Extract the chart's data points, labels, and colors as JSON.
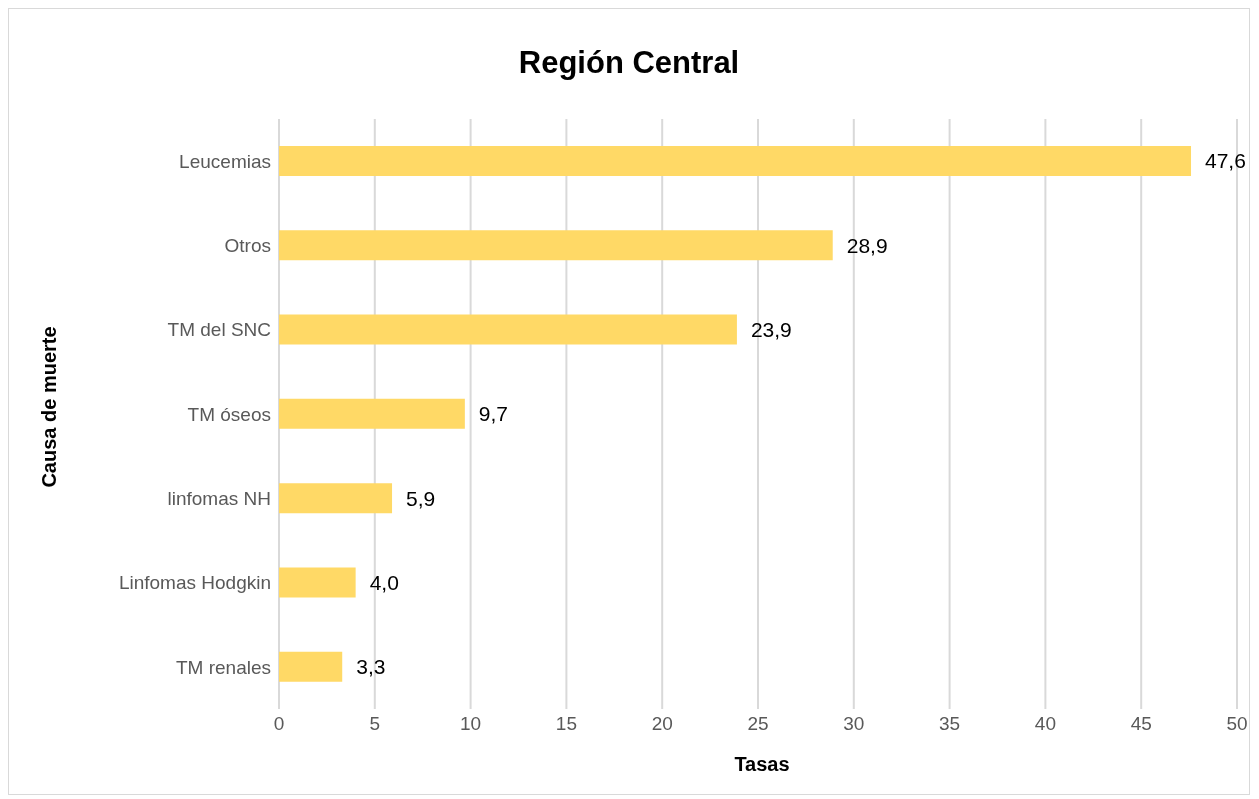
{
  "chart_data": {
    "type": "bar",
    "orientation": "horizontal",
    "title": "Región Central",
    "xlabel": "Tasas",
    "ylabel": "Causa de muerte",
    "categories": [
      "Leucemias",
      "Otros",
      "TM del SNC",
      "TM óseos",
      "linfomas NH",
      "Linfomas Hodgkin",
      "TM renales"
    ],
    "values": [
      47.6,
      28.9,
      23.9,
      9.7,
      5.9,
      4.0,
      3.3
    ],
    "value_labels": [
      "47,6",
      "28,9",
      "23,9",
      "9,7",
      "5,9",
      "4,0",
      "3,3"
    ],
    "color": "#ffd966",
    "xlim": [
      0,
      50
    ],
    "xticks": [
      0,
      5,
      10,
      15,
      20,
      25,
      30,
      35,
      40,
      45,
      50
    ],
    "grid": "x"
  }
}
